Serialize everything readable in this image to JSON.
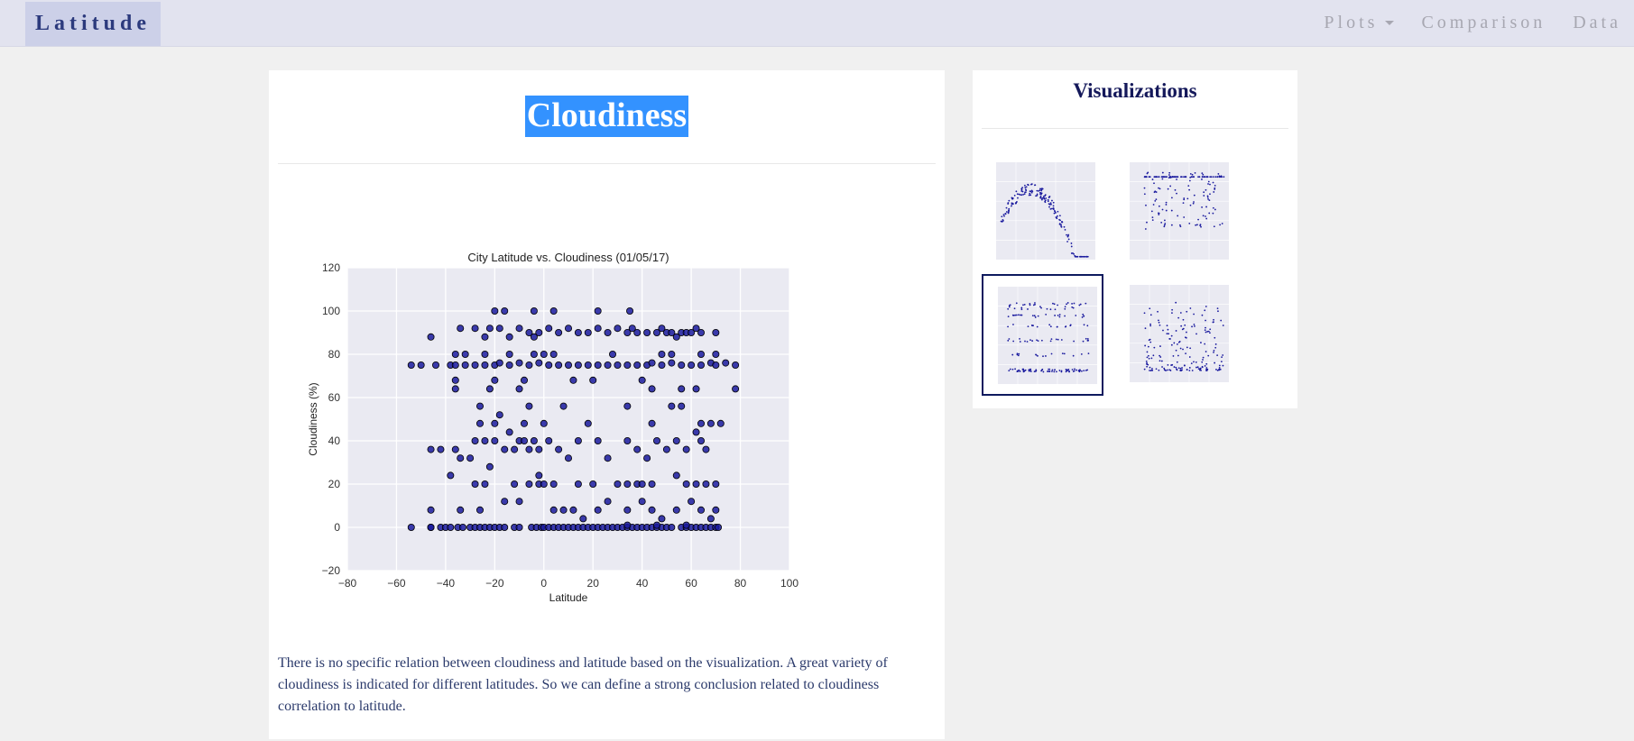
{
  "navbar": {
    "brand": "Latitude",
    "items": [
      {
        "label": "Plots",
        "dropdown": true
      },
      {
        "label": "Comparison",
        "dropdown": false
      },
      {
        "label": "Data",
        "dropdown": false
      }
    ]
  },
  "main": {
    "title": "Cloudiness",
    "description": "There is no specific relation between cloudiness and latitude based on the visualization. A great variety of cloudiness is indicated for different latitudes. So we can define a strong conclusion related to cloudiness correlation to latitude."
  },
  "sidebar": {
    "title": "Visualizations",
    "thumbnails": [
      {
        "name": "max-temperature-plot-thumbnail",
        "selected": false
      },
      {
        "name": "humidity-plot-thumbnail",
        "selected": false
      },
      {
        "name": "cloudiness-plot-thumbnail",
        "selected": true
      },
      {
        "name": "wind-speed-plot-thumbnail",
        "selected": false
      }
    ]
  },
  "colors": {
    "accent": "#3392ff",
    "brand_text": "#2c3a7d",
    "point_fill": "#1a1a9e",
    "plot_bg": "#eaeaf2",
    "description_text": "#2b3a6b"
  },
  "chart_data": {
    "type": "scatter",
    "title": "City Latitude vs. Cloudiness (01/05/17)",
    "xlabel": "Latitude",
    "ylabel": "Cloudiness (%)",
    "xlim": [
      -80,
      100
    ],
    "ylim": [
      -20,
      120
    ],
    "xticks": [
      -80,
      -60,
      -40,
      -20,
      0,
      20,
      40,
      60,
      80,
      100
    ],
    "yticks": [
      -20,
      0,
      20,
      40,
      60,
      80,
      100,
      120
    ],
    "xtick_labels": [
      "−80",
      "−60",
      "−40",
      "−20",
      "0",
      "20",
      "40",
      "60",
      "80",
      "100"
    ],
    "ytick_labels": [
      "−20",
      "0",
      "20",
      "40",
      "60",
      "80",
      "100",
      "120"
    ],
    "grid": true,
    "points": [
      [
        -54,
        0
      ],
      [
        -46,
        0
      ],
      [
        -46,
        0
      ],
      [
        -42,
        0
      ],
      [
        -40,
        0
      ],
      [
        -38,
        0
      ],
      [
        -35,
        0
      ],
      [
        -33,
        0
      ],
      [
        -30,
        0
      ],
      [
        -28,
        0
      ],
      [
        -26,
        0
      ],
      [
        -24,
        0
      ],
      [
        -22,
        0
      ],
      [
        -20,
        0
      ],
      [
        -18,
        0
      ],
      [
        -16,
        0
      ],
      [
        -12,
        0
      ],
      [
        -10,
        0
      ],
      [
        -5,
        0
      ],
      [
        -3,
        0
      ],
      [
        -1,
        0
      ],
      [
        0,
        0
      ],
      [
        2,
        0
      ],
      [
        4,
        0
      ],
      [
        6,
        0
      ],
      [
        8,
        0
      ],
      [
        10,
        0
      ],
      [
        12,
        0
      ],
      [
        14,
        0
      ],
      [
        16,
        0
      ],
      [
        18,
        0
      ],
      [
        20,
        0
      ],
      [
        22,
        0
      ],
      [
        24,
        0
      ],
      [
        26,
        0
      ],
      [
        28,
        0
      ],
      [
        30,
        0
      ],
      [
        32,
        0
      ],
      [
        34,
        0
      ],
      [
        36,
        0
      ],
      [
        38,
        0
      ],
      [
        40,
        0
      ],
      [
        42,
        0
      ],
      [
        44,
        0
      ],
      [
        46,
        0
      ],
      [
        48,
        0
      ],
      [
        50,
        0
      ],
      [
        52,
        0
      ],
      [
        56,
        0
      ],
      [
        58,
        0
      ],
      [
        60,
        0
      ],
      [
        62,
        0
      ],
      [
        64,
        0
      ],
      [
        66,
        0
      ],
      [
        68,
        0
      ],
      [
        70,
        0
      ],
      [
        71,
        0
      ],
      [
        58,
        1
      ],
      [
        34,
        1
      ],
      [
        46,
        1
      ],
      [
        -46,
        8
      ],
      [
        -34,
        8
      ],
      [
        -26,
        8
      ],
      [
        -16,
        12
      ],
      [
        -10,
        12
      ],
      [
        4,
        8
      ],
      [
        8,
        8
      ],
      [
        12,
        8
      ],
      [
        16,
        4
      ],
      [
        22,
        8
      ],
      [
        26,
        12
      ],
      [
        34,
        8
      ],
      [
        40,
        12
      ],
      [
        48,
        4
      ],
      [
        54,
        8
      ],
      [
        60,
        12
      ],
      [
        64,
        8
      ],
      [
        68,
        4
      ],
      [
        70,
        8
      ],
      [
        44,
        8
      ],
      [
        -28,
        20
      ],
      [
        -24,
        20
      ],
      [
        -12,
        20
      ],
      [
        -6,
        20
      ],
      [
        -2,
        20
      ],
      [
        0,
        20
      ],
      [
        4,
        20
      ],
      [
        14,
        20
      ],
      [
        20,
        20
      ],
      [
        30,
        20
      ],
      [
        34,
        20
      ],
      [
        38,
        20
      ],
      [
        40,
        20
      ],
      [
        44,
        20
      ],
      [
        54,
        24
      ],
      [
        58,
        20
      ],
      [
        62,
        20
      ],
      [
        66,
        20
      ],
      [
        70,
        20
      ],
      [
        -2,
        24
      ],
      [
        -38,
        24
      ],
      [
        -22,
        28
      ],
      [
        -46,
        36
      ],
      [
        -42,
        36
      ],
      [
        -36,
        36
      ],
      [
        -34,
        32
      ],
      [
        -30,
        32
      ],
      [
        -28,
        40
      ],
      [
        -24,
        40
      ],
      [
        -20,
        40
      ],
      [
        -16,
        36
      ],
      [
        -12,
        36
      ],
      [
        -10,
        40
      ],
      [
        -8,
        40
      ],
      [
        -6,
        36
      ],
      [
        -4,
        40
      ],
      [
        -2,
        36
      ],
      [
        2,
        40
      ],
      [
        6,
        36
      ],
      [
        10,
        32
      ],
      [
        14,
        40
      ],
      [
        22,
        40
      ],
      [
        26,
        32
      ],
      [
        34,
        40
      ],
      [
        38,
        36
      ],
      [
        42,
        32
      ],
      [
        46,
        40
      ],
      [
        50,
        36
      ],
      [
        54,
        40
      ],
      [
        58,
        36
      ],
      [
        62,
        44
      ],
      [
        64,
        40
      ],
      [
        66,
        36
      ],
      [
        -26,
        48
      ],
      [
        -20,
        48
      ],
      [
        -14,
        44
      ],
      [
        -8,
        48
      ],
      [
        0,
        48
      ],
      [
        8,
        56
      ],
      [
        18,
        48
      ],
      [
        34,
        56
      ],
      [
        44,
        48
      ],
      [
        52,
        56
      ],
      [
        56,
        56
      ],
      [
        64,
        48
      ],
      [
        68,
        48
      ],
      [
        72,
        48
      ],
      [
        -26,
        56
      ],
      [
        -18,
        52
      ],
      [
        -6,
        56
      ],
      [
        -54,
        75
      ],
      [
        -50,
        75
      ],
      [
        -44,
        75
      ],
      [
        -38,
        75
      ],
      [
        -36,
        75
      ],
      [
        -32,
        75
      ],
      [
        -28,
        75
      ],
      [
        -24,
        75
      ],
      [
        -20,
        75
      ],
      [
        -18,
        76
      ],
      [
        -14,
        75
      ],
      [
        -10,
        76
      ],
      [
        -6,
        75
      ],
      [
        -2,
        76
      ],
      [
        2,
        75
      ],
      [
        6,
        75
      ],
      [
        10,
        75
      ],
      [
        14,
        75
      ],
      [
        18,
        75
      ],
      [
        22,
        75
      ],
      [
        26,
        75
      ],
      [
        30,
        75
      ],
      [
        34,
        75
      ],
      [
        38,
        75
      ],
      [
        42,
        75
      ],
      [
        44,
        76
      ],
      [
        48,
        75
      ],
      [
        52,
        76
      ],
      [
        56,
        75
      ],
      [
        60,
        75
      ],
      [
        64,
        75
      ],
      [
        68,
        76
      ],
      [
        70,
        75
      ],
      [
        74,
        76
      ],
      [
        78,
        75
      ],
      [
        -36,
        68
      ],
      [
        -20,
        68
      ],
      [
        -8,
        68
      ],
      [
        12,
        68
      ],
      [
        20,
        68
      ],
      [
        40,
        68
      ],
      [
        -36,
        64
      ],
      [
        -22,
        64
      ],
      [
        -10,
        64
      ],
      [
        44,
        64
      ],
      [
        56,
        64
      ],
      [
        62,
        64
      ],
      [
        78,
        64
      ],
      [
        -36,
        80
      ],
      [
        -32,
        80
      ],
      [
        -24,
        80
      ],
      [
        -14,
        80
      ],
      [
        -4,
        80
      ],
      [
        0,
        80
      ],
      [
        4,
        80
      ],
      [
        28,
        80
      ],
      [
        48,
        80
      ],
      [
        52,
        80
      ],
      [
        64,
        80
      ],
      [
        70,
        80
      ],
      [
        -46,
        88
      ],
      [
        -34,
        92
      ],
      [
        -28,
        92
      ],
      [
        -24,
        88
      ],
      [
        -22,
        92
      ],
      [
        -18,
        92
      ],
      [
        -14,
        88
      ],
      [
        -10,
        92
      ],
      [
        -6,
        90
      ],
      [
        -4,
        88
      ],
      [
        -2,
        90
      ],
      [
        2,
        92
      ],
      [
        6,
        90
      ],
      [
        10,
        92
      ],
      [
        14,
        90
      ],
      [
        18,
        90
      ],
      [
        22,
        92
      ],
      [
        26,
        90
      ],
      [
        30,
        92
      ],
      [
        34,
        90
      ],
      [
        36,
        92
      ],
      [
        38,
        90
      ],
      [
        42,
        90
      ],
      [
        46,
        90
      ],
      [
        48,
        92
      ],
      [
        50,
        90
      ],
      [
        52,
        90
      ],
      [
        54,
        88
      ],
      [
        56,
        90
      ],
      [
        58,
        90
      ],
      [
        60,
        90
      ],
      [
        62,
        92
      ],
      [
        64,
        90
      ],
      [
        70,
        90
      ],
      [
        -20,
        100
      ],
      [
        -16,
        100
      ],
      [
        -4,
        100
      ],
      [
        4,
        100
      ],
      [
        22,
        100
      ],
      [
        35,
        100
      ]
    ]
  }
}
